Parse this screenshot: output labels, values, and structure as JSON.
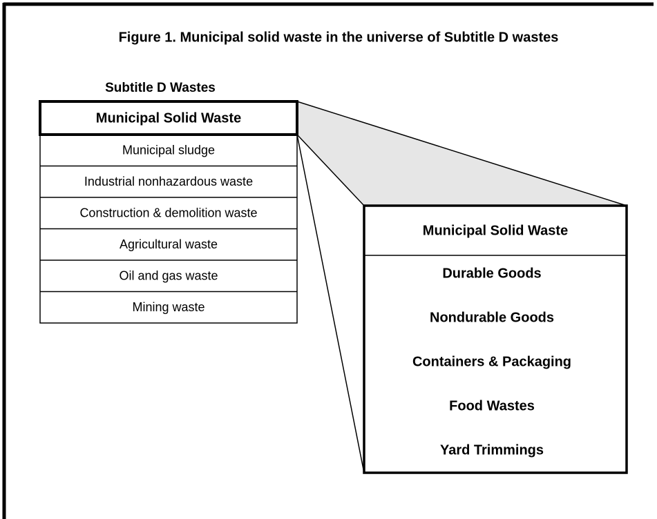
{
  "title": "Figure 1. Municipal solid waste in the universe of Subtitle D wastes",
  "left_box": {
    "heading": "Subtitle D Wastes",
    "header": "Municipal Solid Waste",
    "rows": [
      "Municipal sludge",
      "Industrial nonhazardous waste",
      "Construction & demolition waste",
      "Agricultural waste",
      "Oil and gas waste",
      "Mining waste"
    ]
  },
  "right_box": {
    "header": "Municipal Solid Waste",
    "items": [
      "Durable Goods",
      "Nondurable Goods",
      "Containers & Packaging",
      "Food Wastes",
      "Yard Trimmings"
    ]
  }
}
